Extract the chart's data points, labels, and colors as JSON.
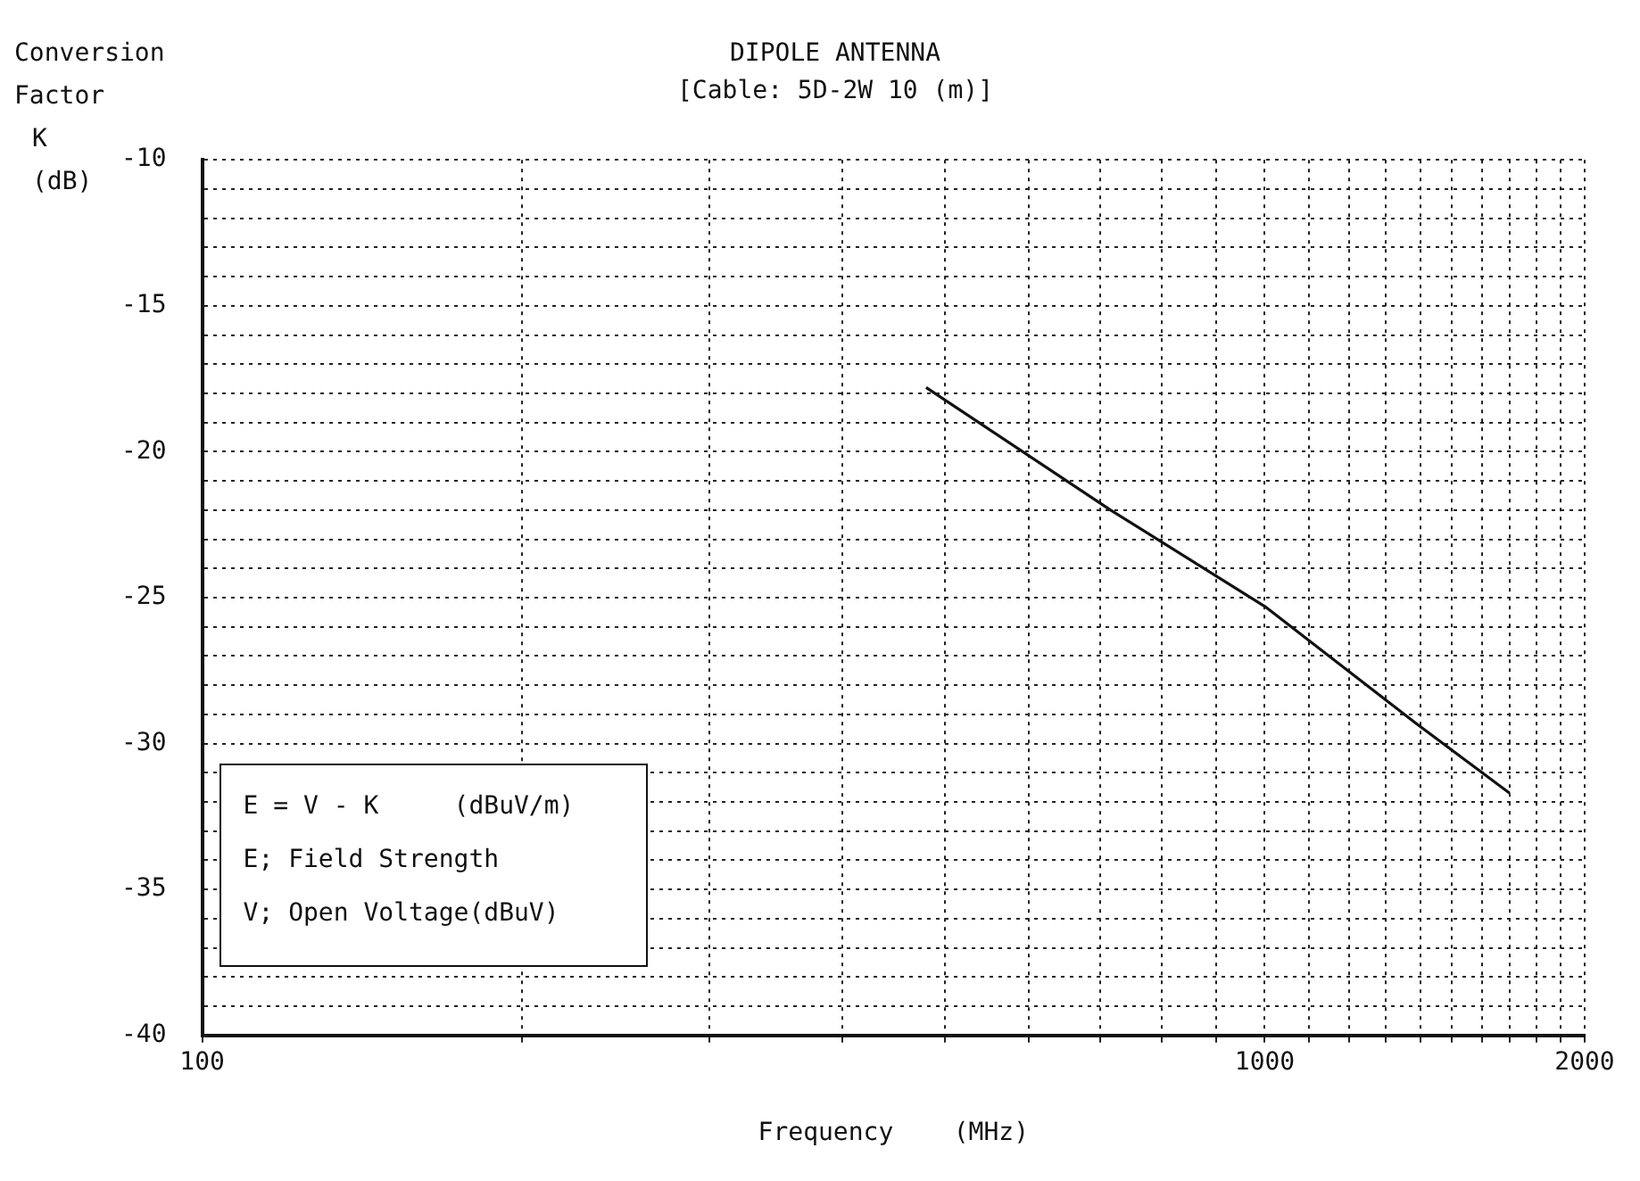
{
  "chart_data": {
    "type": "line",
    "title": "DIPOLE ANTENNA",
    "subtitle": "[Cable: 5D-2W 10 (m)]",
    "xlabel": "Frequency    (MHz)",
    "ylabel": "Conversion Factor K (dB)",
    "x": [
      480,
      716,
      1000,
      1387,
      1700
    ],
    "series": [
      {
        "color": "#111111",
        "values": [
          -17.8,
          -22.0,
          -25.3,
          -29.3,
          -31.7
        ]
      }
    ],
    "log": "x",
    "xlim": [
      100,
      2000
    ],
    "ylim": [
      -40,
      -10
    ],
    "xticks": [
      100,
      {
        "value": 200,
        "label": null
      },
      {
        "value": 300,
        "label": null
      },
      {
        "value": 400,
        "label": null
      },
      {
        "value": 500,
        "label": null
      },
      {
        "value": 600,
        "label": null
      },
      {
        "value": 700,
        "label": null
      },
      {
        "value": 800,
        "label": null
      },
      {
        "value": 900,
        "label": null
      },
      1000,
      {
        "value": 1100,
        "label": null
      },
      {
        "value": 1200,
        "label": null
      },
      {
        "value": 1300,
        "label": null
      },
      {
        "value": 1400,
        "label": null
      },
      {
        "value": 1500,
        "label": null
      },
      {
        "value": 1600,
        "label": null
      },
      {
        "value": 1700,
        "label": null
      },
      {
        "value": 1800,
        "label": null
      },
      {
        "value": 1900,
        "label": null
      },
      2000
    ],
    "yticks": [
      -40,
      {
        "value": -39,
        "label": null
      },
      {
        "value": -38,
        "label": null
      },
      {
        "value": -37,
        "label": null
      },
      {
        "value": -36,
        "label": null
      },
      -35,
      {
        "value": -34,
        "label": null
      },
      {
        "value": -33,
        "label": null
      },
      {
        "value": -32,
        "label": null
      },
      {
        "value": -31,
        "label": null
      },
      -30,
      {
        "value": -29,
        "label": null
      },
      {
        "value": -28,
        "label": null
      },
      {
        "value": -27,
        "label": null
      },
      {
        "value": -26,
        "label": null
      },
      -25,
      {
        "value": -24,
        "label": null
      },
      {
        "value": -23,
        "label": null
      },
      {
        "value": -22,
        "label": null
      },
      {
        "value": -21,
        "label": null
      },
      -20,
      {
        "value": -19,
        "label": null
      },
      {
        "value": -18,
        "label": null
      },
      {
        "value": -17,
        "label": null
      },
      {
        "value": -16,
        "label": null
      },
      -15,
      {
        "value": -14,
        "label": null
      },
      {
        "value": -13,
        "label": null
      },
      {
        "value": -12,
        "label": null
      },
      {
        "value": -11,
        "label": null
      },
      -10
    ],
    "grid": true,
    "legend": false,
    "marker": "none",
    "line_style": "solid",
    "annotations": [
      "E = V - K     (dBuV/m)",
      "E; Field Strength",
      "V; Open Voltage(dBuV)"
    ]
  }
}
